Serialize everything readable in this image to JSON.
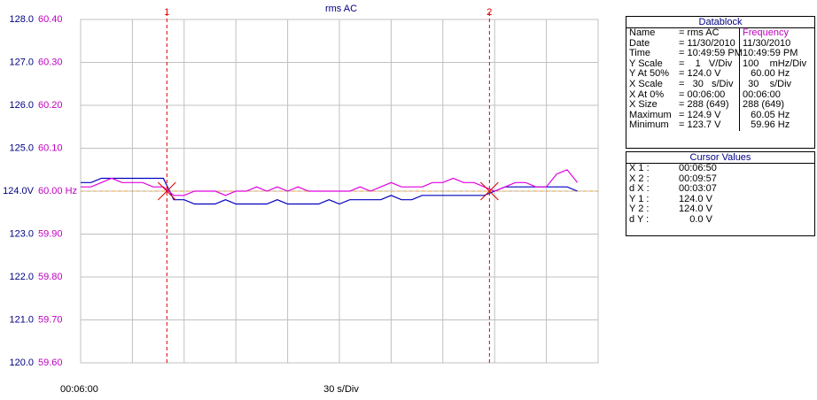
{
  "chart_data": {
    "type": "line",
    "title": "rms AC",
    "x": [
      0,
      6,
      12,
      18,
      24,
      30,
      36,
      42,
      48,
      54,
      60,
      66,
      72,
      78,
      84,
      90,
      96,
      102,
      108,
      114,
      120,
      126,
      132,
      138,
      144,
      150,
      156,
      162,
      168,
      174,
      180,
      186,
      192,
      198,
      204,
      210,
      216,
      222,
      228,
      234,
      240,
      246,
      252,
      258,
      264,
      270,
      276,
      282,
      288
    ],
    "xlim": [
      0,
      300
    ],
    "xticks": [
      0,
      30,
      60,
      90,
      120,
      150,
      180,
      210,
      240,
      270,
      300
    ],
    "x_start_label": "00:06:00",
    "x_scale_label": "30 s/Div",
    "ylim": [
      120,
      128
    ],
    "yticks": [
      {
        "value": 120,
        "label": "120.0"
      },
      {
        "value": 121,
        "label": "121.0"
      },
      {
        "value": 122,
        "label": "122.0"
      },
      {
        "value": 123,
        "label": "123.0"
      },
      {
        "value": 124,
        "label": "124.0V"
      },
      {
        "value": 125,
        "label": "125.0"
      },
      {
        "value": 126,
        "label": "126.0"
      },
      {
        "value": 127,
        "label": "127.0"
      },
      {
        "value": 128,
        "label": "128.0"
      }
    ],
    "y2lim": [
      59.6,
      60.4
    ],
    "y2ticks": [
      {
        "value": 59.6,
        "label": "59.60"
      },
      {
        "value": 59.7,
        "label": "59.70"
      },
      {
        "value": 59.8,
        "label": "59.80"
      },
      {
        "value": 59.9,
        "label": "59.90"
      },
      {
        "value": 60,
        "label": "60.00 Hz"
      },
      {
        "value": 60.1,
        "label": "60.10"
      },
      {
        "value": 60.2,
        "label": "60.20"
      },
      {
        "value": 60.3,
        "label": "60.30"
      },
      {
        "value": 60.4,
        "label": "60.40"
      }
    ],
    "grid": true,
    "reference_color": "#e0a040",
    "cursors": [
      {
        "label": "1",
        "x": 50
      },
      {
        "label": "2",
        "x": 237
      }
    ],
    "cursor_color": "#e00000",
    "series": [
      {
        "color": "#0000c0",
        "values": [
          124.2,
          124.2,
          124.3,
          124.3,
          124.3,
          124.3,
          124.3,
          124.3,
          124.3,
          123.8,
          123.8,
          123.7,
          123.7,
          123.7,
          123.8,
          123.7,
          123.7,
          123.7,
          123.7,
          123.8,
          123.7,
          123.7,
          123.7,
          123.7,
          123.8,
          123.7,
          123.8,
          123.8,
          123.8,
          123.8,
          123.9,
          123.8,
          123.8,
          123.9,
          123.9,
          123.9,
          123.9,
          123.9,
          123.9,
          123.9,
          124.0,
          124.1,
          124.1,
          124.1,
          124.1,
          124.1,
          124.1,
          124.1,
          124.0
        ]
      },
      {
        "color": "#e000e0",
        "axis": "y2",
        "values": [
          60.01,
          60.01,
          60.02,
          60.03,
          60.02,
          60.02,
          60.02,
          60.01,
          60.01,
          59.99,
          59.99,
          60.0,
          60.0,
          60.0,
          59.99,
          60.0,
          60.0,
          60.01,
          60.0,
          60.01,
          60.0,
          60.01,
          60.0,
          60.0,
          60.0,
          60.0,
          60.0,
          60.01,
          60.0,
          60.01,
          60.02,
          60.01,
          60.01,
          60.01,
          60.02,
          60.02,
          60.03,
          60.02,
          60.02,
          60.01,
          60.0,
          60.01,
          60.02,
          60.02,
          60.01,
          60.01,
          60.04,
          60.05,
          60.02
        ]
      }
    ]
  },
  "datablock": {
    "title": "Datablock",
    "rows": [
      [
        "Name",
        "= rms AC",
        "Frequency"
      ],
      [
        "Date",
        "= 11/30/2010",
        "11/30/2010"
      ],
      [
        "Time",
        "= 10:49:59 PM",
        "10:49:59 PM"
      ],
      [
        "Y Scale",
        "=    1   V/Div",
        "100    mHz/Div"
      ],
      [
        "Y At 50%",
        "= 124.0 V",
        "   60.00 Hz"
      ],
      [
        "X Scale",
        "=   30   s/Div",
        "  30    s/Div"
      ],
      [
        "X At 0%",
        "= 00:06:00",
        "00:06:00"
      ],
      [
        "X Size",
        "= 288 (649)",
        "288 (649)"
      ],
      [
        "Maximum",
        "= 124.9 V",
        "   60.05 Hz"
      ],
      [
        "Minimum",
        "= 123.7 V",
        "   59.96 Hz"
      ]
    ]
  },
  "cursor_values": {
    "title": "Cursor Values",
    "rows": [
      [
        "X 1 :",
        "00:06:50"
      ],
      [
        "X 2 :",
        "00:09:57"
      ],
      [
        "d X :",
        "00:03:07"
      ],
      [
        "Y 1 :",
        "124.0 V"
      ],
      [
        "Y 2 :",
        "124.0 V"
      ],
      [
        "d Y :",
        "    0.0 V"
      ]
    ]
  }
}
